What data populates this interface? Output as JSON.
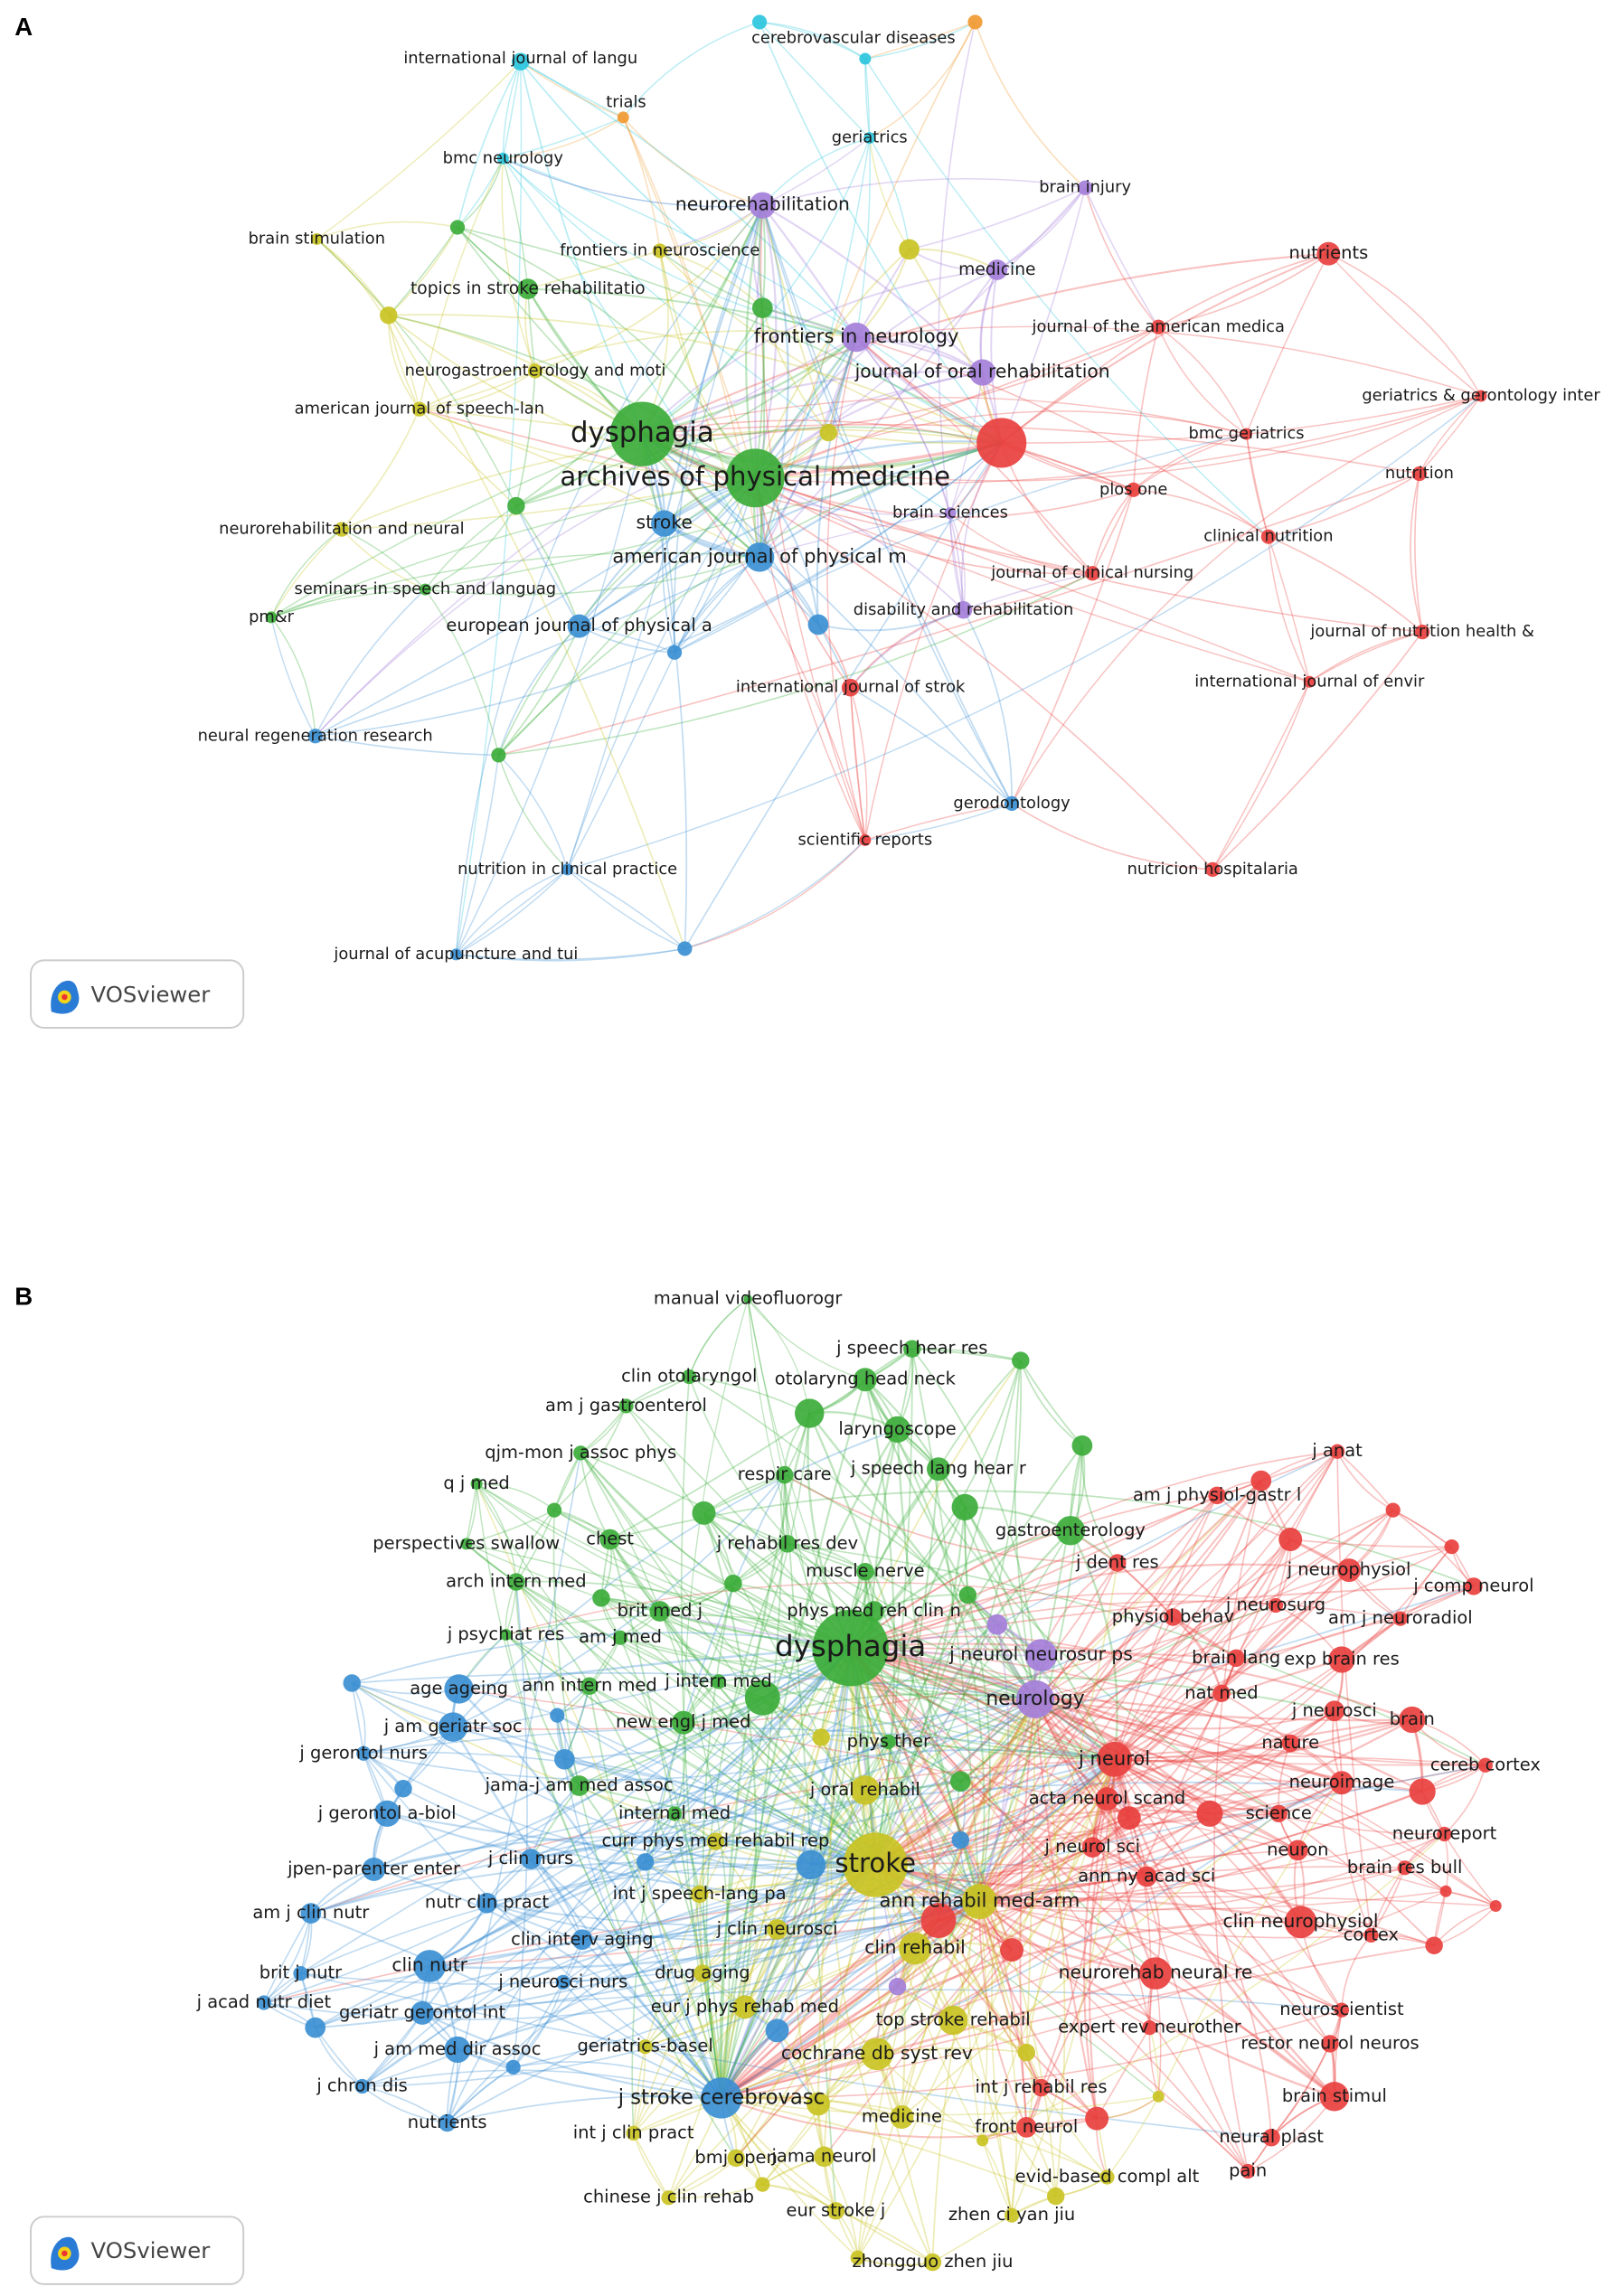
{
  "panels": [
    {
      "label": "A",
      "badge": "VOSviewer",
      "nodes": [
        "international journal of langu",
        "cerebrovascular diseases",
        "trials",
        "geriatrics",
        "bmc neurology",
        "brain injury",
        "neurorehabilitation",
        "brain stimulation",
        "frontiers in neuroscience",
        "nutrients",
        "medicine",
        "topics in stroke rehabilitatio",
        "journal of the american medica",
        "frontiers in neurology",
        "journal of oral rehabilitation",
        "neurogastroenterology and moti",
        "geriatrics & gerontology inter",
        "american journal of speech-lan",
        "dysphagia",
        "bmc geriatrics",
        "archives of physical medicine",
        "nutrition",
        "plos one",
        "brain sciences",
        "neurorehabilitation and neural",
        "stroke",
        "clinical nutrition",
        "american journal of physical m",
        "journal of clinical nursing",
        "seminars in speech and languag",
        "pm&r",
        "disability and rehabilitation",
        "european journal of physical a",
        "journal of nutrition health &",
        "international journal of strok",
        "international journal of envir",
        "neural regeneration research",
        "gerodontology",
        "scientific reports",
        "nutricion hospitalaria",
        "nutrition in clinical practice",
        "journal of acupuncture and tui"
      ]
    },
    {
      "label": "B",
      "badge": "VOSviewer",
      "nodes": [
        "manual videofluorogr",
        "j speech hear res",
        "clin otolaryngol",
        "otolaryng head neck",
        "am j gastroenterol",
        "laryngoscope",
        "qjm-mon j assoc phys",
        "respir care",
        "j speech lang hear r",
        "q j med",
        "perspectives swallow",
        "chest",
        "j rehabil res dev",
        "gastroenterology",
        "arch intern med",
        "muscle nerve",
        "brit med j",
        "phys med reh clin n",
        "j psychiat res",
        "am j med",
        "dysphagia",
        "ann intern med",
        "j intern med",
        "new engl j med",
        "jama-j am med assoc",
        "internal med",
        "phys ther",
        "j anat",
        "am j physiol-gastr l",
        "j dent res",
        "j neurophysiol",
        "j comp neurol",
        "j neurosurg",
        "physiol behav",
        "am j neuroradiol",
        "brain lang",
        "exp brain res",
        "nat med",
        "j neurosci",
        "brain",
        "nature",
        "j neurol",
        "cereb cortex",
        "neuroimage",
        "acta neurol scand",
        "science",
        "neuroreport",
        "j neurol sci",
        "neuron",
        "ann ny acad sci",
        "brain res bull",
        "clin neurophysiol",
        "cortex",
        "neurorehab neural re",
        "neuroscientist",
        "expert rev neurother",
        "restor neurol neuros",
        "int j rehabil res",
        "brain stimul",
        "front neurol",
        "neural plast",
        "pain",
        "evid-based compl alt",
        "j neurol neurosur ps",
        "neurology",
        "j oral rehabil",
        "curr phys med rehabil rep",
        "stroke",
        "int j speech-lang pa",
        "ann rehabil med-arm",
        "j clin neurosci",
        "clin rehabil",
        "drug aging",
        "eur j phys rehab med",
        "top stroke rehabil",
        "geriatrics-basel",
        "cochrane db syst rev",
        "medicine",
        "int j clin pract",
        "bmj open",
        "jama neurol",
        "chinese j clin rehab",
        "eur stroke j",
        "zhen ci yan jiu",
        "zhongguo zhen jiu",
        "age ageing",
        "j am geriatr soc",
        "j gerontol nurs",
        "j gerontol a-biol",
        "j clin nurs",
        "jpen-parenter enter",
        "clin interv aging",
        "nutr clin pract",
        "am j clin nutr",
        "clin nutr",
        "brit j nutr",
        "j acad nutr diet",
        "j neurosci nurs",
        "geriatr gerontol int",
        "j am med dir assoc",
        "j chron dis",
        "j stroke cerebrovasc",
        "nutrients"
      ]
    }
  ]
}
